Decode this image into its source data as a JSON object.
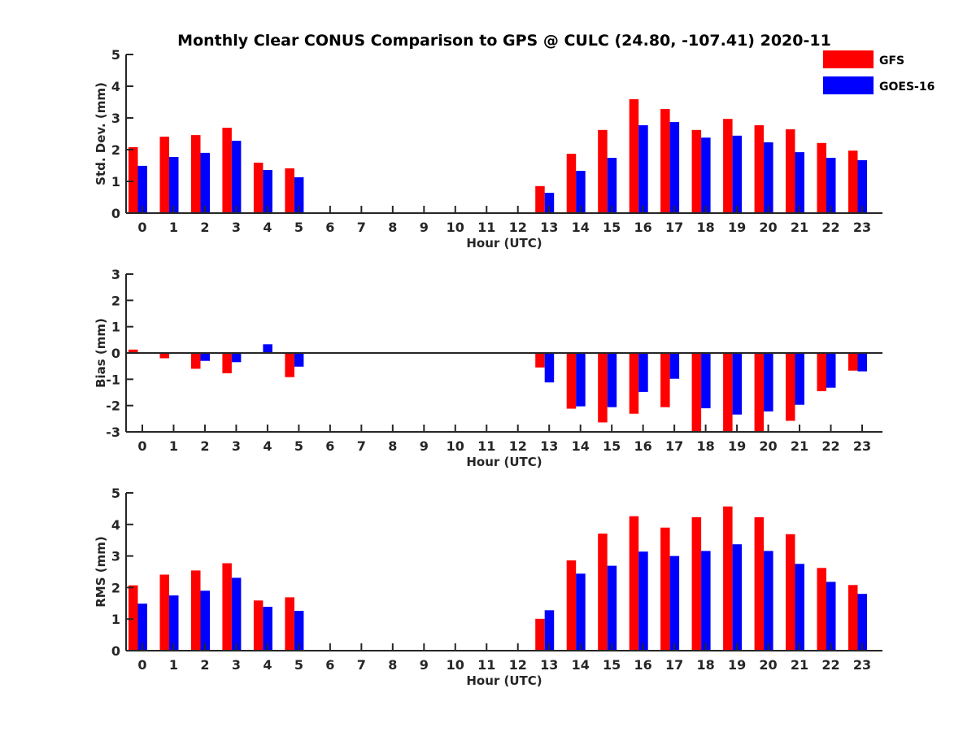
{
  "chart_data": {
    "title": "Monthly Clear CONUS Comparison to GPS @ CULC (24.80, -107.41) 2020-11",
    "legend": {
      "placement": "top-right",
      "entries": [
        {
          "name": "GFS",
          "color": "#ff0000"
        },
        {
          "name": "GOES-16",
          "color": "#0000ff"
        }
      ]
    },
    "categories": [
      "0",
      "1",
      "2",
      "3",
      "4",
      "5",
      "6",
      "7",
      "8",
      "9",
      "10",
      "11",
      "12",
      "13",
      "14",
      "15",
      "16",
      "17",
      "18",
      "19",
      "20",
      "21",
      "22",
      "23"
    ],
    "panels": [
      {
        "type": "bar",
        "ylabel": "Std. Dev. (mm)",
        "xlabel": "Hour (UTC)",
        "ylim": [
          0,
          5
        ],
        "yticks": [
          "0",
          "1",
          "2",
          "3",
          "4",
          "5"
        ],
        "series": [
          {
            "name": "GFS",
            "values": [
              2.08,
              2.41,
              2.46,
              2.69,
              1.59,
              1.41,
              0,
              0,
              0,
              0,
              0,
              0,
              0,
              0.85,
              1.87,
              2.62,
              3.59,
              3.28,
              2.62,
              2.97,
              2.77,
              2.64,
              2.21,
              1.97
            ]
          },
          {
            "name": "GOES-16",
            "values": [
              1.49,
              1.77,
              1.9,
              2.28,
              1.36,
              1.13,
              0,
              0,
              0,
              0,
              0,
              0,
              0,
              0.64,
              1.33,
              1.74,
              2.77,
              2.87,
              2.38,
              2.44,
              2.23,
              1.92,
              1.74,
              1.67
            ]
          }
        ]
      },
      {
        "type": "bar",
        "ylabel": "Bias (mm)",
        "xlabel": "Hour (UTC)",
        "ylim": [
          -3,
          3
        ],
        "yticks": [
          "-3",
          "-2",
          "-1",
          "0",
          "1",
          "2",
          "3"
        ],
        "zero_line": true,
        "series": [
          {
            "name": "GFS",
            "values": [
              0.13,
              -0.2,
              -0.6,
              -0.77,
              -0.03,
              -0.92,
              0,
              0,
              0,
              0,
              0,
              0,
              0,
              -0.55,
              -2.12,
              -2.64,
              -2.31,
              -2.06,
              -3.0,
              -3.0,
              -3.0,
              -2.58,
              -1.45,
              -0.67
            ]
          },
          {
            "name": "GOES-16",
            "values": [
              0.03,
              -0.03,
              -0.3,
              -0.35,
              0.33,
              -0.52,
              0,
              0,
              0,
              0,
              0,
              0,
              0,
              -1.12,
              -2.03,
              -2.06,
              -1.48,
              -0.98,
              -2.1,
              -2.34,
              -2.22,
              -1.97,
              -1.32,
              -0.7
            ]
          }
        ]
      },
      {
        "type": "bar",
        "ylabel": "RMS (mm)",
        "xlabel": "Hour (UTC)",
        "ylim": [
          0,
          5
        ],
        "yticks": [
          "0",
          "1",
          "2",
          "3",
          "4",
          "5"
        ],
        "series": [
          {
            "name": "GFS",
            "values": [
              2.07,
              2.41,
              2.54,
              2.77,
              1.59,
              1.69,
              0,
              0,
              0,
              0,
              0,
              0,
              0,
              1.01,
              2.86,
              3.71,
              4.26,
              3.9,
              4.23,
              4.57,
              4.23,
              3.69,
              2.62,
              2.08
            ]
          },
          {
            "name": "GOES-16",
            "values": [
              1.49,
              1.75,
              1.9,
              2.31,
              1.39,
              1.26,
              0,
              0,
              0,
              0,
              0,
              0,
              0,
              1.28,
              2.44,
              2.69,
              3.14,
              3.0,
              3.16,
              3.37,
              3.16,
              2.75,
              2.18,
              1.8
            ]
          }
        ]
      }
    ]
  }
}
